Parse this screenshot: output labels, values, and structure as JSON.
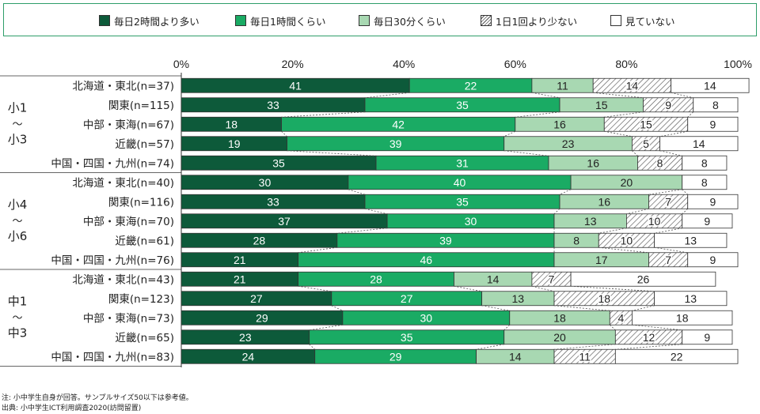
{
  "legend": [
    {
      "label": "毎日2時間より多い",
      "color": "#0d5a3a",
      "pattern": "solid"
    },
    {
      "label": "毎日1時間くらい",
      "color": "#1aab64",
      "pattern": "solid"
    },
    {
      "label": "毎日30分くらい",
      "color": "#a8d8b2",
      "pattern": "solid"
    },
    {
      "label": "1日1回より少ない",
      "color": "#ffffff",
      "pattern": "hatch"
    },
    {
      "label": "見ていない",
      "color": "#ffffff",
      "pattern": "solid"
    }
  ],
  "notes": {
    "note1": "注: 小中学生自身が回答。サンプルサイズ50以下は参考値。",
    "note2": "出典: 小中学生ICT利用調査2020(訪問留置)"
  },
  "chart_data": {
    "type": "bar",
    "orientation": "horizontal",
    "stacked": true,
    "xlim": [
      0,
      100
    ],
    "x_ticks": [
      "0%",
      "20%",
      "40%",
      "60%",
      "80%",
      "100%"
    ],
    "groups": [
      {
        "label": [
          "小1",
          "〜",
          "小3"
        ],
        "start": 0,
        "end": 5
      },
      {
        "label": [
          "小4",
          "〜",
          "小6"
        ],
        "start": 5,
        "end": 10
      },
      {
        "label": [
          "中1",
          "〜",
          "中3"
        ],
        "start": 10,
        "end": 15
      }
    ],
    "categories": [
      "北海道・東北(n=37)",
      "関東(n=115)",
      "中部・東海(n=67)",
      "近畿(n=57)",
      "中国・四国・九州(n=74)",
      "北海道・東北(n=40)",
      "関東(n=116)",
      "中部・東海(n=70)",
      "近畿(n=61)",
      "中国・四国・九州(n=76)",
      "北海道・東北(n=43)",
      "関東(n=123)",
      "中部・東海(n=73)",
      "近畿(n=65)",
      "中国・四国・九州(n=83)"
    ],
    "series": [
      {
        "name": "毎日2時間より多い",
        "values": [
          41,
          33,
          18,
          19,
          35,
          30,
          33,
          37,
          28,
          21,
          21,
          27,
          29,
          23,
          24
        ]
      },
      {
        "name": "毎日1時間くらい",
        "values": [
          22,
          35,
          42,
          39,
          31,
          40,
          35,
          30,
          39,
          46,
          28,
          27,
          30,
          35,
          29
        ]
      },
      {
        "name": "毎日30分くらい",
        "values": [
          11,
          15,
          16,
          23,
          16,
          20,
          16,
          13,
          8,
          17,
          14,
          13,
          18,
          20,
          14
        ]
      },
      {
        "name": "1日1回より少ない",
        "values": [
          14,
          9,
          15,
          5,
          8,
          0,
          7,
          10,
          10,
          7,
          7,
          18,
          4,
          12,
          11
        ]
      },
      {
        "name": "見ていない",
        "values": [
          14,
          8,
          9,
          14,
          8,
          8,
          9,
          9,
          13,
          9,
          26,
          13,
          18,
          9,
          22
        ]
      }
    ]
  }
}
